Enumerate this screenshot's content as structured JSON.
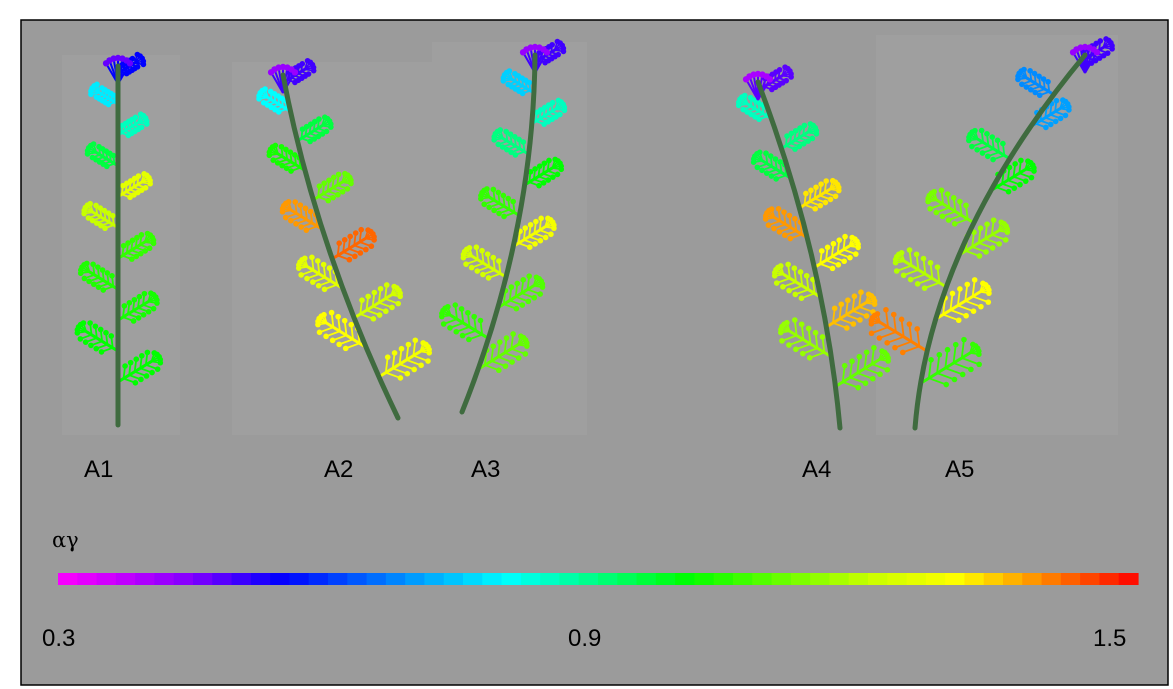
{
  "figure": {
    "background_color": "#9b9b9b",
    "border_color": "#000000",
    "stem_color": "#3f6b3f"
  },
  "plants": [
    {
      "label": "A1"
    },
    {
      "label": "A2"
    },
    {
      "label": "A3"
    },
    {
      "label": "A4"
    },
    {
      "label": "A5"
    }
  ],
  "colorbar": {
    "symbol": "αγ",
    "min": 0.3,
    "max": 1.5,
    "tick_labels": [
      "0.3",
      "0.9",
      "1.5"
    ],
    "stops": [
      {
        "value": 0.3,
        "color": "#ff00ff"
      },
      {
        "value": 0.45,
        "color": "#8000ff"
      },
      {
        "value": 0.55,
        "color": "#0000ff"
      },
      {
        "value": 0.7,
        "color": "#00a0ff"
      },
      {
        "value": 0.8,
        "color": "#00ffff"
      },
      {
        "value": 1.0,
        "color": "#00ff00"
      },
      {
        "value": 1.2,
        "color": "#c8ff00"
      },
      {
        "value": 1.3,
        "color": "#ffff00"
      },
      {
        "value": 1.4,
        "color": "#ff8000"
      },
      {
        "value": 1.5,
        "color": "#ff0000"
      }
    ]
  }
}
